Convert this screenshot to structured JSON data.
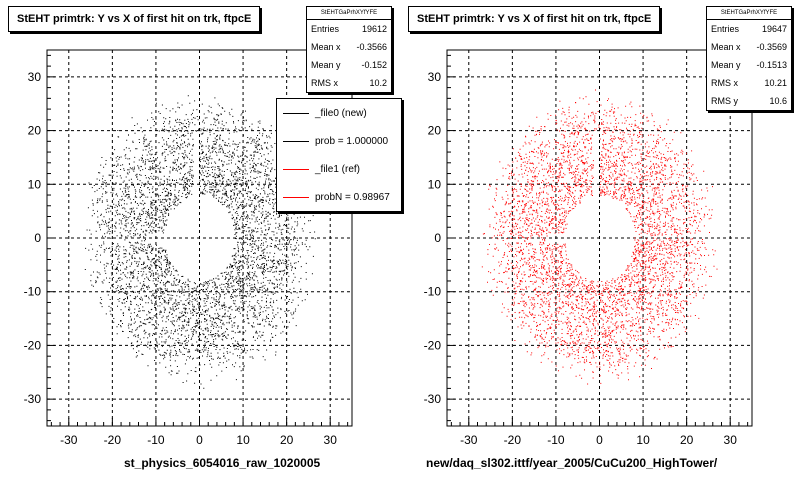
{
  "chart_data": [
    {
      "type": "scatter",
      "title": "StEHT primtrk: Y vs X of first hit on trk, ftpcE",
      "xlabel": "st_physics_6054016_raw_1020005",
      "ylabel": "",
      "xlim": [
        -35,
        35
      ],
      "ylim": [
        -35,
        35
      ],
      "x_ticks": [
        -30,
        -20,
        -10,
        0,
        10,
        20,
        30
      ],
      "y_ticks": [
        -30,
        -20,
        -10,
        0,
        10,
        20,
        30
      ],
      "grid": true,
      "marker_color": "#000000",
      "stats": {
        "header": "StEHTGaPrhXYfYFE",
        "entries": [
          {
            "label": "Entries",
            "value": "19612"
          },
          {
            "label": "Mean x",
            "value": "-0.3566"
          },
          {
            "label": "Mean y",
            "value": "-0.152"
          },
          {
            "label": "RMS x",
            "value": "10.2"
          }
        ]
      },
      "legend": {
        "placement": "top-right",
        "items": [
          {
            "label": "_file0 (new)",
            "color": "#000000"
          },
          {
            "label": "prob = 1.000000",
            "color": "#000000"
          },
          {
            "label": "_file1 (ref)",
            "color": "#ff0000"
          },
          {
            "label": "probN = 0.98967",
            "color": "#ff0000"
          }
        ]
      },
      "distribution": {
        "inner_radius": 8,
        "outer_radius": 28,
        "entries": 19612
      }
    },
    {
      "type": "scatter",
      "title": "StEHT primtrk: Y vs X of first hit on trk, ftpcE",
      "xlabel": "new/daq_sl302.ittf/year_2005/CuCu200_HighTower/",
      "ylabel": "",
      "xlim": [
        -35,
        35
      ],
      "ylim": [
        -35,
        35
      ],
      "x_ticks": [
        -30,
        -20,
        -10,
        0,
        10,
        20,
        30
      ],
      "y_ticks": [
        -30,
        -20,
        -10,
        0,
        10,
        20,
        30
      ],
      "grid": true,
      "marker_color": "#ff0000",
      "stats": {
        "header": "StEHTGaPrhXYfYFE",
        "entries": [
          {
            "label": "Entries",
            "value": "19647"
          },
          {
            "label": "Mean x",
            "value": "-0.3569"
          },
          {
            "label": "Mean y",
            "value": "-0.1513"
          },
          {
            "label": "RMS x",
            "value": "10.21"
          },
          {
            "label": "RMS y",
            "value": "10.6"
          }
        ]
      },
      "distribution": {
        "inner_radius": 8,
        "outer_radius": 28,
        "entries": 19647
      }
    }
  ]
}
